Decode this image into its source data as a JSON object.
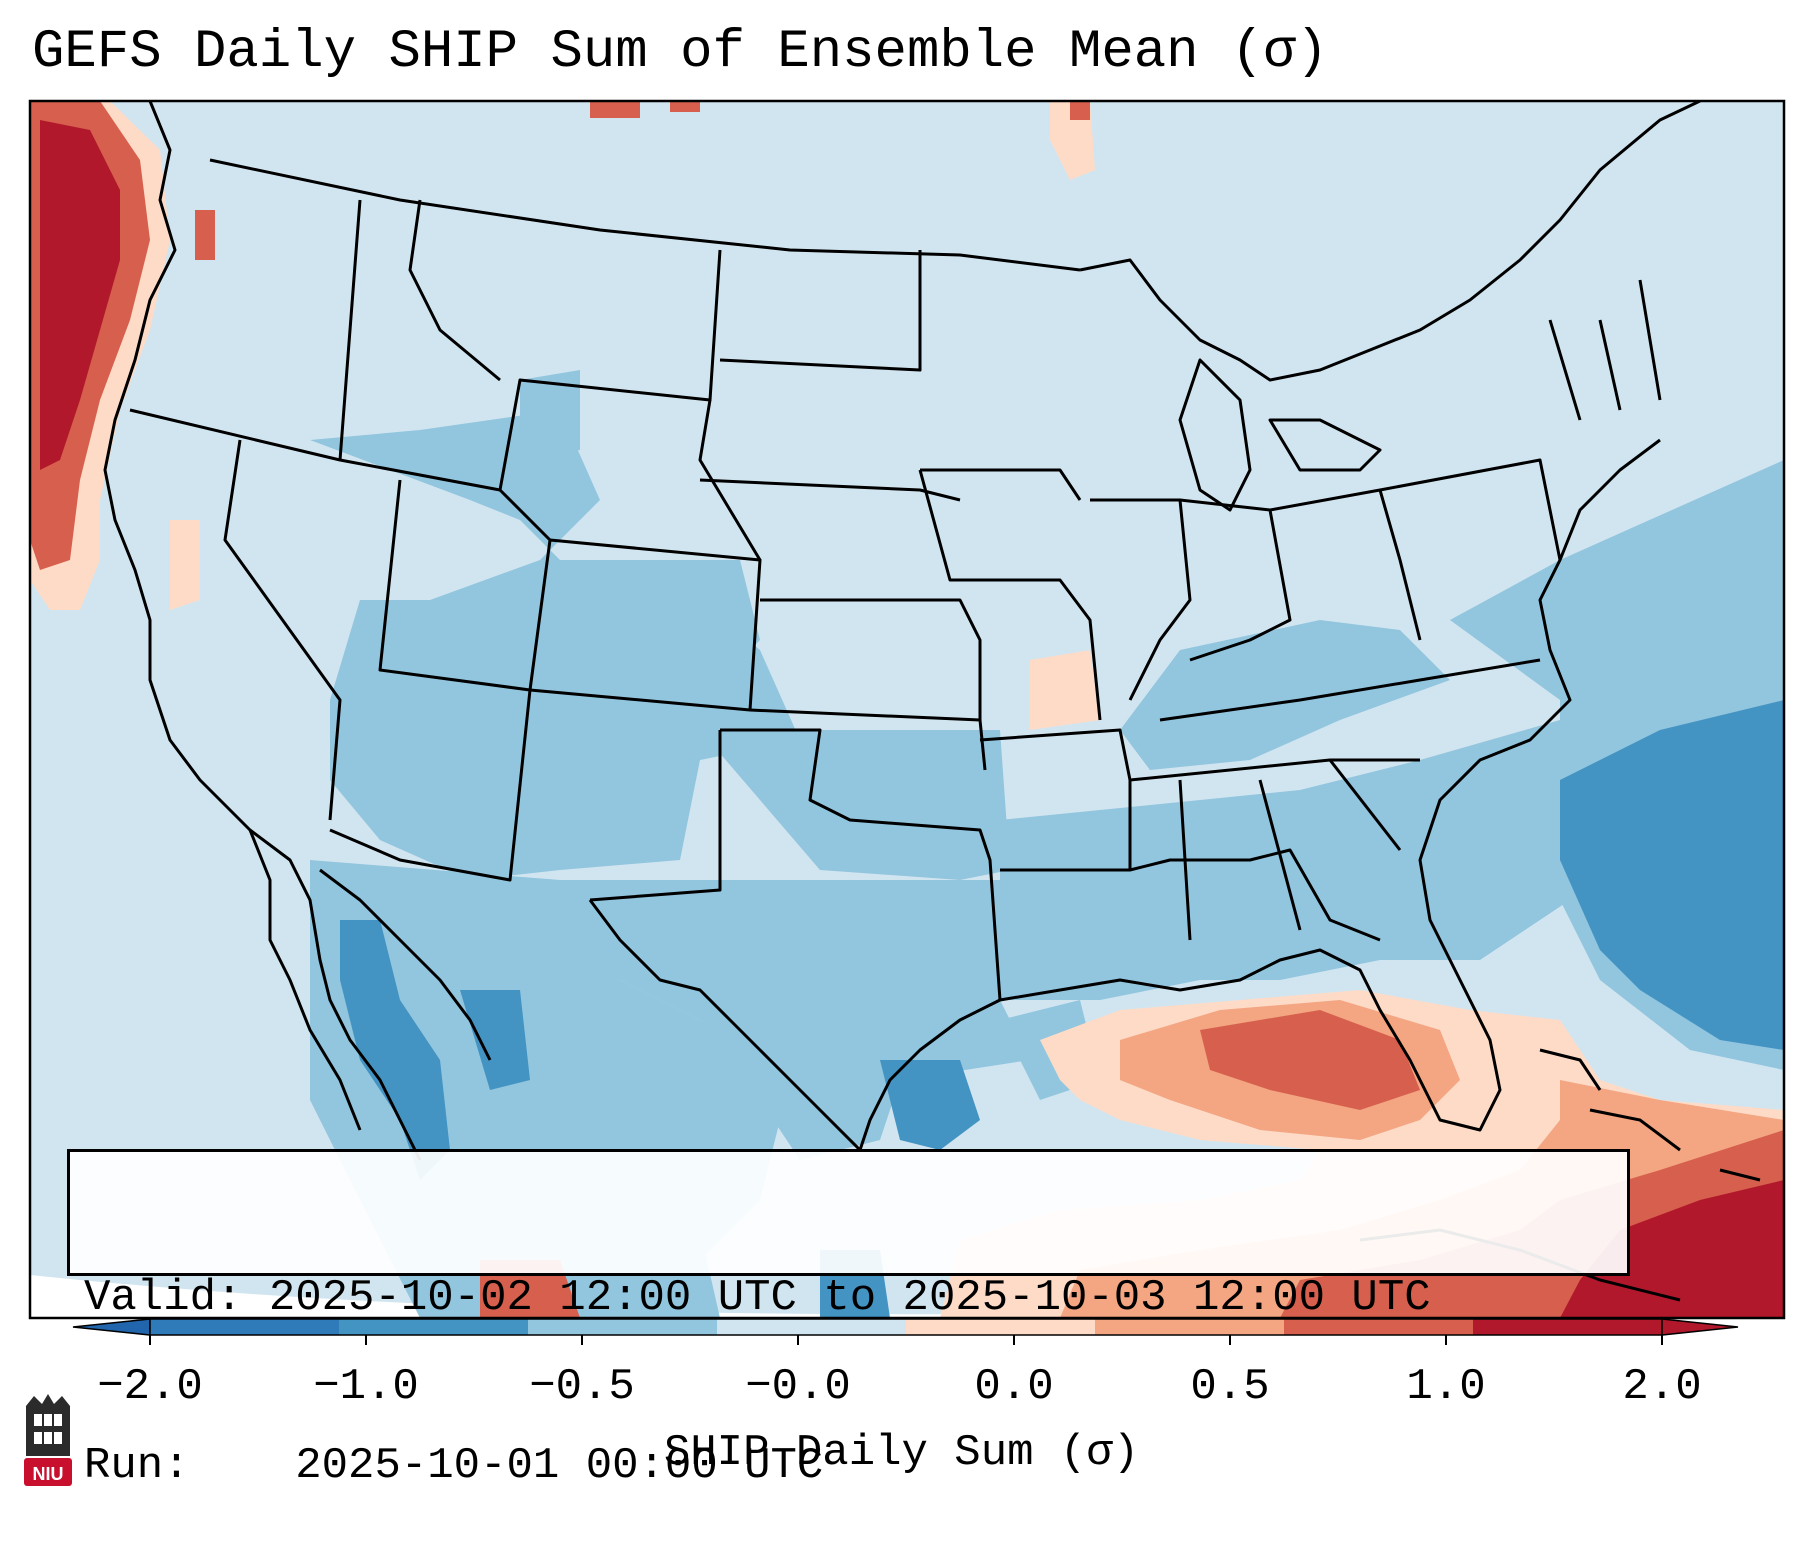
{
  "title": "GEFS Daily SHIP Sum of Ensemble Mean (σ)",
  "info": {
    "valid_label": "Valid:",
    "valid_value": "2025-10-02 12:00 UTC to 2025-10-03 12:00 UTC",
    "run_label": "Run:",
    "run_value": "2025-10-01 00:00 UTC"
  },
  "colorbar": {
    "label": "SHIP Daily Sum (σ)",
    "ticks": [
      "−2.0",
      "−1.0",
      "−0.5",
      "−0.0",
      "0.0",
      "0.5",
      "1.0",
      "2.0"
    ],
    "colors": [
      "#2f7ab8",
      "#4393c3",
      "#92c5de",
      "#d1e5f0",
      "#fddbc7",
      "#f4a582",
      "#d6604d",
      "#b2182b"
    ],
    "extend_low_color": "#2166ac",
    "extend_high_color": "#b2182b"
  },
  "logo": {
    "text": "NIU",
    "color": "#c8102e"
  },
  "map": {
    "background_color": "#d1e5f0",
    "outside_color": "#ffffff",
    "line_color": "#000000"
  }
}
